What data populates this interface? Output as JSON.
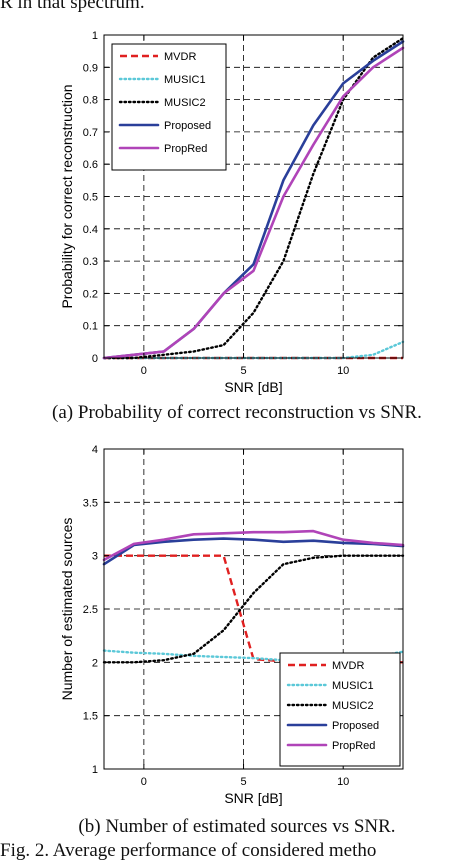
{
  "header_fragment": "R in that spectrum.",
  "figure_caption": "Fig. 2. Average performance of considered metho",
  "colors": {
    "MVDR": "#e02020",
    "MUSIC1": "#5bc8d8",
    "MUSIC2": "#000000",
    "Proposed": "#2a3f9a",
    "PropRed": "#b044b8"
  },
  "chart_data": [
    {
      "type": "line",
      "caption": "(a) Probability of correct reconstruction vs SNR.",
      "xlabel": "SNR [dB]",
      "ylabel": "Probability for correct reconstruction",
      "xlim": [
        -2,
        13
      ],
      "ylim": [
        0,
        1
      ],
      "xticks": [
        0,
        5,
        10
      ],
      "yticks": [
        0,
        0.1,
        0.2,
        0.3,
        0.4,
        0.5,
        0.6,
        0.7,
        0.8,
        0.9,
        1
      ],
      "ytick_labels": [
        "0",
        "0.1",
        "0.2",
        "0.3",
        "0.4",
        "0.5",
        "0.6",
        "0.7",
        "0.8",
        "0.9",
        "1"
      ],
      "grid": true,
      "legend_position": "top-left",
      "x": [
        -2,
        -0.5,
        1,
        2.5,
        4,
        5.5,
        7,
        8.5,
        10,
        11.5,
        13
      ],
      "series": [
        {
          "name": "MVDR",
          "style": "dashed",
          "values": [
            0,
            0,
            0,
            0,
            0,
            0,
            0,
            0,
            0,
            0,
            0
          ]
        },
        {
          "name": "MUSIC1",
          "style": "dotted",
          "values": [
            0,
            0,
            0,
            0,
            0,
            0,
            0,
            0,
            0,
            0.01,
            0.05
          ]
        },
        {
          "name": "MUSIC2",
          "style": "dotted",
          "values": [
            0,
            0,
            0.01,
            0.02,
            0.04,
            0.14,
            0.3,
            0.57,
            0.8,
            0.93,
            0.99
          ]
        },
        {
          "name": "Proposed",
          "style": "solid",
          "values": [
            0,
            0.01,
            0.02,
            0.09,
            0.2,
            0.29,
            0.55,
            0.72,
            0.85,
            0.92,
            0.98
          ]
        },
        {
          "name": "PropRed",
          "style": "solid",
          "values": [
            0,
            0.01,
            0.02,
            0.09,
            0.2,
            0.27,
            0.5,
            0.66,
            0.81,
            0.9,
            0.96
          ]
        }
      ]
    },
    {
      "type": "line",
      "caption": "(b) Number of estimated sources vs SNR.",
      "xlabel": "SNR [dB]",
      "ylabel": "Number of estimated sources",
      "xlim": [
        -2,
        13
      ],
      "ylim": [
        1,
        4
      ],
      "xticks": [
        0,
        5,
        10
      ],
      "yticks": [
        1,
        1.5,
        2,
        2.5,
        3,
        3.5,
        4
      ],
      "ytick_labels": [
        "1",
        "1.5",
        "2",
        "2.5",
        "3",
        "3.5",
        "4"
      ],
      "grid": true,
      "legend_position": "bottom-right",
      "x": [
        -2,
        -0.5,
        1,
        2.5,
        4,
        5.5,
        7,
        8.5,
        10,
        11.5,
        13
      ],
      "series": [
        {
          "name": "MVDR",
          "style": "dashed",
          "values": [
            3,
            3,
            3,
            3,
            3,
            2.03,
            2.01,
            2,
            2,
            2,
            2
          ]
        },
        {
          "name": "MUSIC1",
          "style": "dotted",
          "values": [
            2.11,
            2.09,
            2.08,
            2.06,
            2.05,
            2.04,
            2.02,
            2.02,
            2.03,
            2.05,
            2.1
          ]
        },
        {
          "name": "MUSIC2",
          "style": "dotted",
          "values": [
            2,
            2,
            2.02,
            2.08,
            2.3,
            2.65,
            2.92,
            2.98,
            3,
            3,
            3
          ]
        },
        {
          "name": "Proposed",
          "style": "solid",
          "values": [
            2.92,
            3.1,
            3.13,
            3.15,
            3.16,
            3.15,
            3.13,
            3.14,
            3.12,
            3.11,
            3.09
          ]
        },
        {
          "name": "PropRed",
          "style": "solid",
          "values": [
            2.96,
            3.11,
            3.15,
            3.2,
            3.21,
            3.22,
            3.22,
            3.23,
            3.15,
            3.12,
            3.1
          ]
        }
      ]
    }
  ]
}
